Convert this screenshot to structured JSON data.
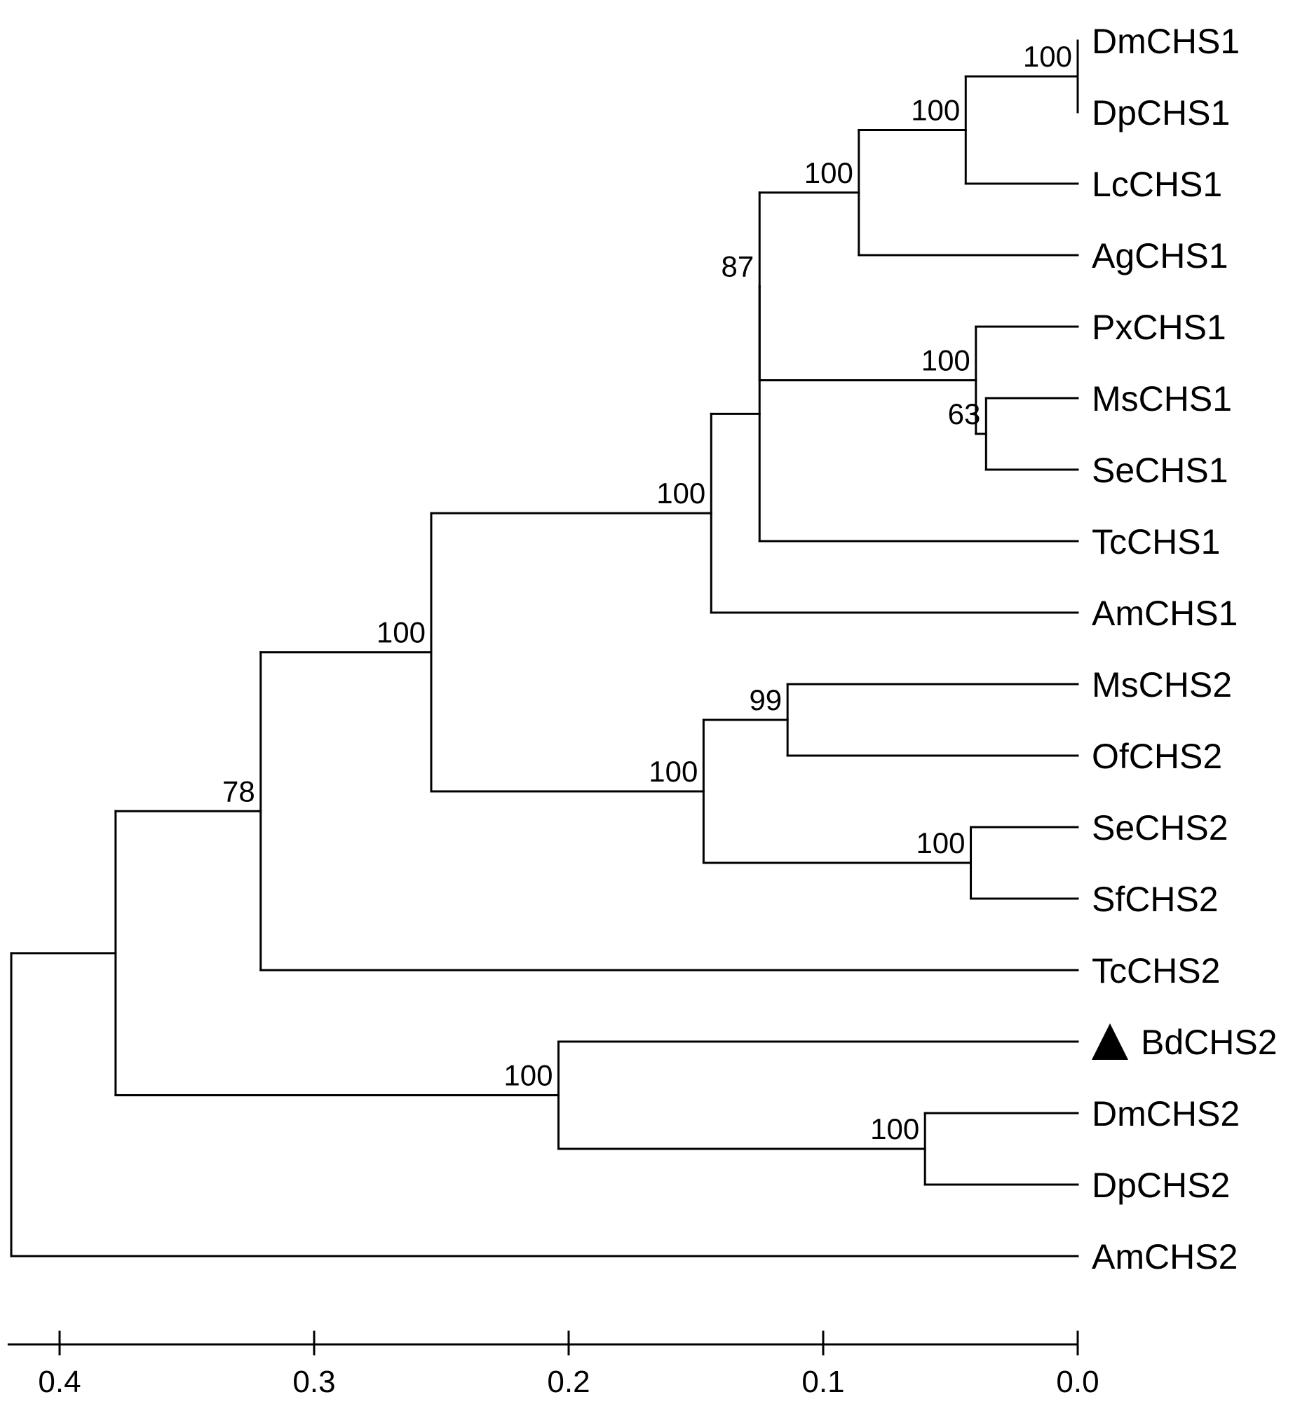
{
  "tree": {
    "leaves": [
      {
        "id": "DmCHS1",
        "label": "DmCHS1"
      },
      {
        "id": "DpCHS1",
        "label": "DpCHS1"
      },
      {
        "id": "LcCHS1",
        "label": "LcCHS1"
      },
      {
        "id": "AgCHS1",
        "label": "AgCHS1"
      },
      {
        "id": "PxCHS1",
        "label": "PxCHS1"
      },
      {
        "id": "MsCHS1",
        "label": "MsCHS1"
      },
      {
        "id": "SeCHS1",
        "label": "SeCHS1"
      },
      {
        "id": "TcCHS1",
        "label": "TcCHS1"
      },
      {
        "id": "AmCHS1",
        "label": "AmCHS1"
      },
      {
        "id": "MsCHS2",
        "label": "MsCHS2"
      },
      {
        "id": "OfCHS2",
        "label": "OfCHS2"
      },
      {
        "id": "SeCHS2",
        "label": "SeCHS2"
      },
      {
        "id": "SfCHS2",
        "label": "SfCHS2"
      },
      {
        "id": "TcCHS2",
        "label": "TcCHS2"
      },
      {
        "id": "BdCHS2",
        "label": "BdCHS2",
        "marker": "triangle-icon"
      },
      {
        "id": "DmCHS2",
        "label": "DmCHS2"
      },
      {
        "id": "DpCHS2",
        "label": "DpCHS2"
      },
      {
        "id": "AmCHS2",
        "label": "AmCHS2"
      }
    ],
    "nodes": [
      {
        "id": "n_dm_dp1",
        "height": 0.0,
        "children": [
          "DmCHS1",
          "DpCHS1"
        ],
        "support": "100"
      },
      {
        "id": "n_dmdplc",
        "height": 0.044,
        "children": [
          "n_dm_dp1",
          "LcCHS1"
        ],
        "support": "100"
      },
      {
        "id": "n_diptera1",
        "height": 0.086,
        "children": [
          "n_dmdplc",
          "AgCHS1"
        ],
        "support": "100"
      },
      {
        "id": "n_ms_se1",
        "height": 0.036,
        "children": [
          "MsCHS1",
          "SeCHS1"
        ],
        "support": "63"
      },
      {
        "id": "n_lep1",
        "height": 0.04,
        "children": [
          "PxCHS1",
          "n_ms_se1"
        ],
        "support": "100"
      },
      {
        "id": "n_87",
        "height": 0.125,
        "children": [
          "n_diptera1",
          "n_lep1"
        ],
        "support": "87"
      },
      {
        "id": "n_chs1core",
        "height": 0.125,
        "children": [
          "n_87",
          "TcCHS1"
        ],
        "support": ""
      },
      {
        "id": "n_chs1",
        "height": 0.144,
        "children": [
          "n_chs1core",
          "AmCHS1"
        ],
        "support": "100"
      },
      {
        "id": "n_ms_of2",
        "height": 0.114,
        "children": [
          "MsCHS2",
          "OfCHS2"
        ],
        "support": "99"
      },
      {
        "id": "n_se_sf2",
        "height": 0.042,
        "children": [
          "SeCHS2",
          "SfCHS2"
        ],
        "support": "100"
      },
      {
        "id": "n_lep2",
        "height": 0.147,
        "children": [
          "n_ms_of2",
          "n_se_sf2"
        ],
        "support": "100"
      },
      {
        "id": "n_100a",
        "height": 0.254,
        "children": [
          "n_chs1",
          "n_lep2"
        ],
        "support": "100"
      },
      {
        "id": "n_78",
        "height": 0.321,
        "children": [
          "n_100a",
          "TcCHS2"
        ],
        "support": "78"
      },
      {
        "id": "n_dm_dp2",
        "height": 0.06,
        "children": [
          "DmCHS2",
          "DpCHS2"
        ],
        "support": "100"
      },
      {
        "id": "n_bd",
        "height": 0.204,
        "children": [
          "BdCHS2",
          "n_dm_dp2"
        ],
        "support": "100"
      },
      {
        "id": "n_inner",
        "height": 0.378,
        "children": [
          "n_78",
          "n_bd"
        ],
        "support": ""
      },
      {
        "id": "n_root",
        "height": 0.419,
        "children": [
          "n_inner",
          "AmCHS2"
        ],
        "support": ""
      }
    ]
  },
  "scale": {
    "ticks": [
      {
        "value": 0.4,
        "label": "0.4"
      },
      {
        "value": 0.3,
        "label": "0.3"
      },
      {
        "value": 0.2,
        "label": "0.2"
      },
      {
        "value": 0.1,
        "label": "0.1"
      },
      {
        "value": 0.0,
        "label": "0.0"
      }
    ],
    "range": [
      0.42,
      0.0
    ]
  }
}
